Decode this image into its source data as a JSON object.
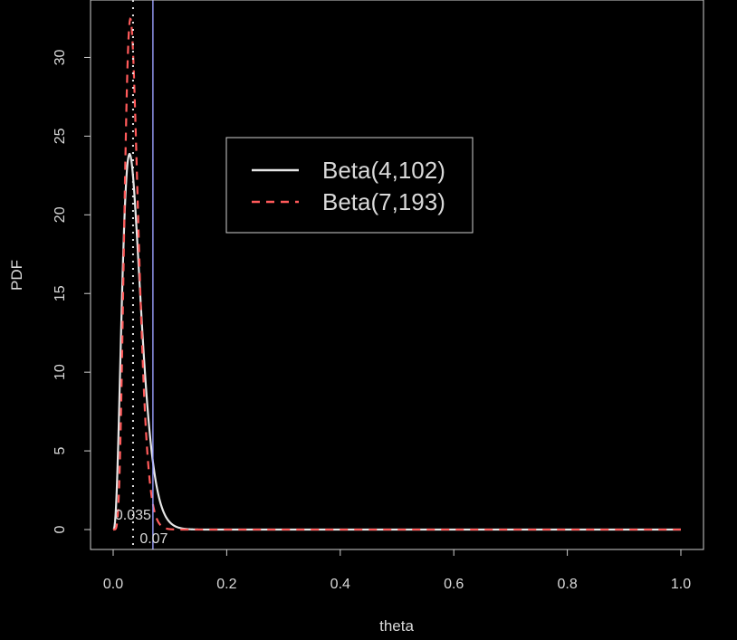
{
  "chart_data": {
    "type": "line",
    "xlabel": "theta",
    "ylabel": "PDF",
    "xlim": [
      0,
      1
    ],
    "ylim": [
      0,
      32.5
    ],
    "x_ticks": [
      "0.0",
      "0.2",
      "0.4",
      "0.6",
      "0.8",
      "1.0"
    ],
    "y_ticks": [
      "0",
      "5",
      "10",
      "15",
      "20",
      "25",
      "30"
    ],
    "grid": false,
    "legend_position": "top-center",
    "background_color": "#000000",
    "series": [
      {
        "name": "Beta(4,102)",
        "distribution": "beta",
        "alpha": 4,
        "beta": 102,
        "color": "#e6e6e6",
        "line_style": "solid"
      },
      {
        "name": "Beta(7,193)",
        "distribution": "beta",
        "alpha": 7,
        "beta": 193,
        "color": "#ff5a5a",
        "line_style": "dashed"
      }
    ],
    "reference_lines": [
      {
        "x": 0.035,
        "label": "0.035",
        "style": "dotted",
        "color": "#e6e6e6"
      },
      {
        "x": 0.07,
        "label": "0.07",
        "style": "solid",
        "color": "#9aa0ff"
      }
    ]
  }
}
